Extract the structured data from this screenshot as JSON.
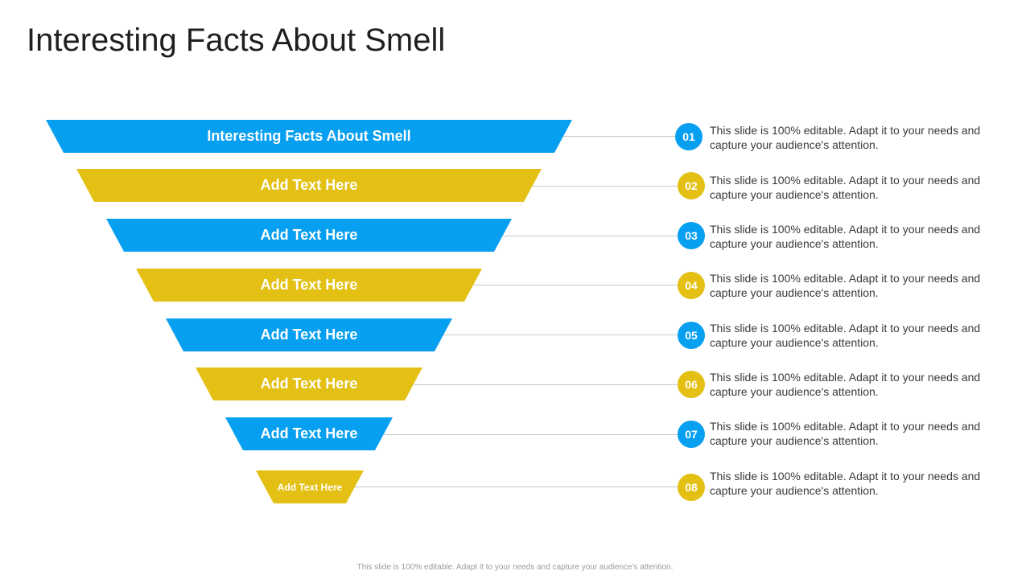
{
  "slide": {
    "title": "Interesting Facts About Smell",
    "footer": "This slide is 100% editable. Adapt it to your needs and capture your audience's attention."
  },
  "colors": {
    "blue": "#079ff0",
    "yellow": "#e3c013",
    "line": "#c8c8c8"
  },
  "funnel": {
    "levels": [
      {
        "number": "01",
        "label": "Interesting Facts About Smell",
        "color": "blue",
        "description": "This slide is 100% editable. Adapt it to your needs and capture your audience's attention."
      },
      {
        "number": "02",
        "label": "Add Text Here",
        "color": "yellow",
        "description": "This slide is 100% editable. Adapt it to your needs and capture your audience's attention."
      },
      {
        "number": "03",
        "label": "Add Text Here",
        "color": "blue",
        "description": "This slide is 100% editable. Adapt it to your needs and capture your audience's attention."
      },
      {
        "number": "04",
        "label": "Add Text Here",
        "color": "yellow",
        "description": "This slide is 100% editable. Adapt it to your needs and capture your audience's attention."
      },
      {
        "number": "05",
        "label": "Add Text Here",
        "color": "blue",
        "description": "This slide is 100% editable. Adapt it to your needs and capture your audience's attention."
      },
      {
        "number": "06",
        "label": "Add Text Here",
        "color": "yellow",
        "description": "This slide is 100% editable. Adapt it to your needs and capture your audience's attention."
      },
      {
        "number": "07",
        "label": "Add Text Here",
        "color": "blue",
        "description": "This slide is 100% editable. Adapt it to your needs and capture your audience's attention."
      },
      {
        "number": "08",
        "label": "Add Text Here",
        "color": "yellow",
        "description": "This slide is 100% editable. Adapt it to your needs and capture your audience's attention."
      }
    ]
  }
}
